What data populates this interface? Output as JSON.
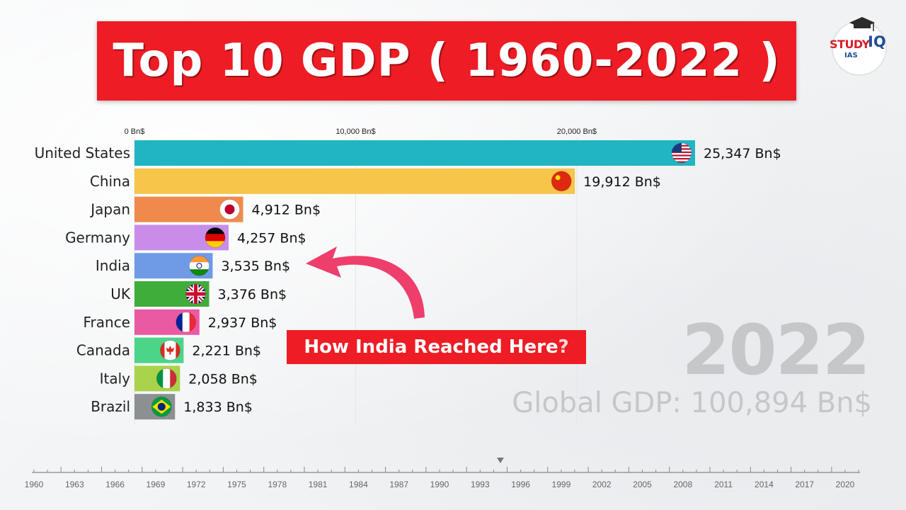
{
  "title": "Top 10 GDP ( 1960-2022 )",
  "logo": {
    "study": "STUDY",
    "iq": "IQ",
    "ias": "IAS"
  },
  "callout": {
    "text": "How India Reached Here",
    "mark": "?"
  },
  "year_display": "2022",
  "global_gdp_text": "Global GDP: 100,894 Bn$",
  "colors": {
    "title_banner": "#ee1c24",
    "callout": "#ee1c24",
    "arrow": "#ee3e6c"
  },
  "chart_data": {
    "type": "bar",
    "orientation": "horizontal",
    "categories": [
      "United States",
      "China",
      "Japan",
      "Germany",
      "India",
      "UK",
      "France",
      "Canada",
      "Italy",
      "Brazil"
    ],
    "values": [
      25347,
      19912,
      4912,
      4257,
      3535,
      3376,
      2937,
      2221,
      2058,
      1833
    ],
    "value_labels": [
      "25,347 Bn$",
      "19,912 Bn$",
      "4,912 Bn$",
      "4,257 Bn$",
      "3,535 Bn$",
      "3,376 Bn$",
      "2,937 Bn$",
      "2,221 Bn$",
      "2,058 Bn$",
      "1,833 Bn$"
    ],
    "bar_colors": [
      "#21b5c4",
      "#f6c54a",
      "#f08a4c",
      "#c88de9",
      "#6f9be6",
      "#3fad3a",
      "#ea5aa2",
      "#4cd489",
      "#a8d34a",
      "#8d9092"
    ],
    "flags": [
      "flag-usa-icon",
      "flag-china-icon",
      "flag-japan-icon",
      "flag-germany-icon",
      "flag-india-icon",
      "flag-uk-icon",
      "flag-france-icon",
      "flag-canada-icon",
      "flag-italy-icon",
      "flag-brazil-icon"
    ],
    "x_ticks": [
      0,
      10000,
      20000
    ],
    "x_tick_labels": [
      "0 Bn$",
      "10,000 Bn$",
      "20,000 Bn$"
    ],
    "xlim": [
      0,
      25347
    ],
    "grid": true,
    "timeline": {
      "start": 1960,
      "end": 2022,
      "labels": [
        "1960",
        "1963",
        "1966",
        "1969",
        "1972",
        "1975",
        "1978",
        "1981",
        "1984",
        "1987",
        "1990",
        "1993",
        "1996",
        "1999",
        "2002",
        "2005",
        "2008",
        "2011",
        "2014",
        "2017",
        "2020"
      ],
      "current": 1994.5
    }
  }
}
